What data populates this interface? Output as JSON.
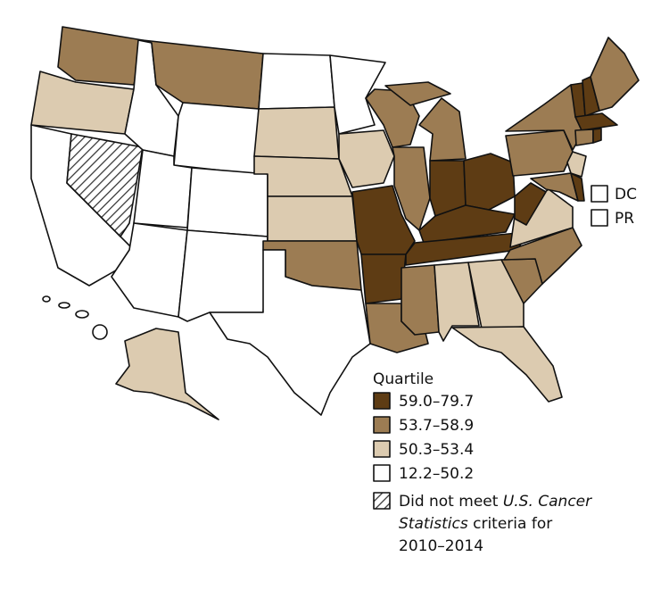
{
  "dc_pr": [
    "DC",
    "PR"
  ],
  "legend": {
    "title": "Quartile",
    "items": [
      {
        "label": "59.0–79.7",
        "color": "#5e3c14"
      },
      {
        "label": "53.7–58.9",
        "color": "#9c7c53"
      },
      {
        "label": "50.3–53.4",
        "color": "#dccbb0"
      },
      {
        "label": "12.2–50.2",
        "color": "#ffffff"
      }
    ],
    "note": {
      "part1": "Did not meet ",
      "part2": "U.S. Cancer",
      "part3": "Statistics",
      "part4": " criteria for",
      "part5": "2010–2014"
    }
  }
}
